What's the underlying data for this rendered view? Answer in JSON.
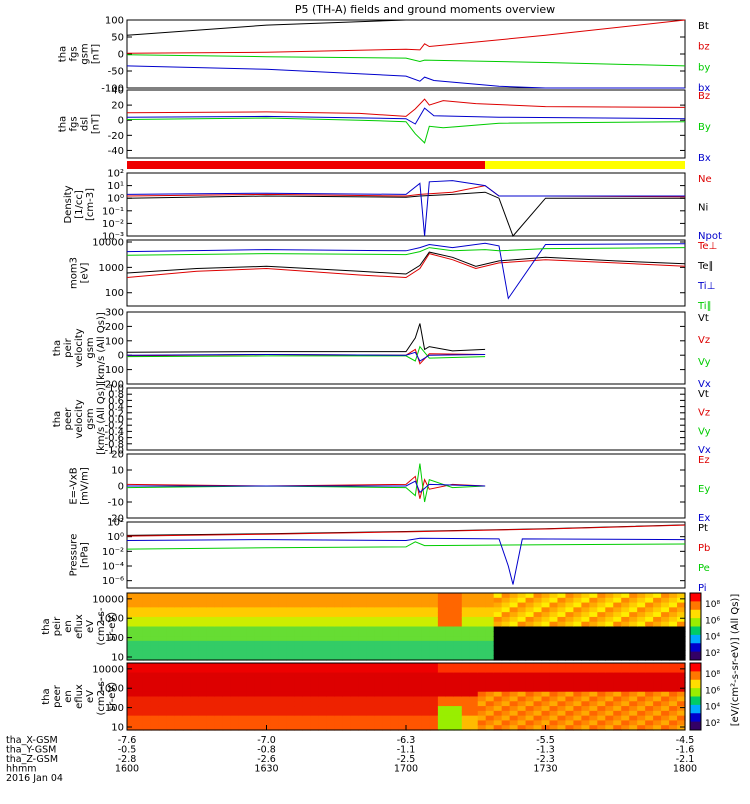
{
  "title": "P5 (TH-A) fields and ground moments overview",
  "chart_data": [
    {
      "id": "fgs_gsm",
      "type": "line",
      "ylabel": [
        "tha",
        "fgs",
        "gsm",
        "[nT]"
      ],
      "ylim": [
        -100,
        100
      ],
      "ticks": [
        "100",
        "50",
        "0",
        "-50",
        "-100"
      ],
      "tick_values": [
        100,
        50,
        0,
        -50,
        -100
      ],
      "series": [
        {
          "name": "Bt",
          "color": "#000000",
          "x": [
            1600,
            1630,
            1700,
            1703,
            1706,
            1720,
            1800
          ],
          "y": [
            55,
            85,
            100,
            100,
            100,
            100,
            100
          ]
        },
        {
          "name": "bz",
          "color": "#dd0000",
          "x": [
            1600,
            1630,
            1700,
            1703,
            1704,
            1705,
            1730,
            1800
          ],
          "y": [
            2,
            5,
            14,
            12,
            30,
            22,
            55,
            100
          ]
        },
        {
          "name": "by",
          "color": "#00cc00",
          "x": [
            1600,
            1630,
            1700,
            1703,
            1704,
            1730,
            1800
          ],
          "y": [
            -2,
            -8,
            -12,
            -22,
            -18,
            -25,
            -35
          ]
        },
        {
          "name": "bx",
          "color": "#0000cc",
          "x": [
            1600,
            1630,
            1700,
            1703,
            1704,
            1706,
            1720,
            1730,
            1800
          ],
          "y": [
            -35,
            -45,
            -65,
            -80,
            -68,
            -78,
            -95,
            -100,
            -100
          ]
        }
      ]
    },
    {
      "id": "fgs_dsl",
      "type": "line",
      "ylabel": [
        "tha",
        "fgs",
        "dsl",
        "[nT]"
      ],
      "ylim": [
        -50,
        40
      ],
      "ticks": [
        "40",
        "20",
        "0",
        "-20",
        "-40"
      ],
      "tick_values": [
        40,
        20,
        0,
        -20,
        -40
      ],
      "series": [
        {
          "name": "Bz",
          "color": "#dd0000",
          "x": [
            1600,
            1630,
            1650,
            1700,
            1702,
            1704,
            1705,
            1708,
            1715,
            1730,
            1800
          ],
          "y": [
            10,
            11,
            9,
            5,
            15,
            28,
            20,
            26,
            22,
            18,
            17
          ]
        },
        {
          "name": "By",
          "color": "#00cc00",
          "x": [
            1600,
            1630,
            1650,
            1700,
            1702,
            1704,
            1705,
            1708,
            1720,
            1800
          ],
          "y": [
            1,
            3,
            0,
            -2,
            -18,
            -30,
            -8,
            -10,
            -4,
            -2
          ]
        },
        {
          "name": "Bx",
          "color": "#0000cc",
          "x": [
            1600,
            1630,
            1700,
            1702,
            1704,
            1706,
            1720,
            1800
          ],
          "y": [
            4,
            5,
            2,
            -5,
            16,
            6,
            4,
            2
          ]
        }
      ]
    },
    {
      "id": "region_bar",
      "type": "bar",
      "segments": [
        {
          "from": 1600,
          "to": 1717,
          "color": "#ee0000"
        },
        {
          "from": 1717,
          "to": 1800,
          "color": "#ffff00"
        }
      ]
    },
    {
      "id": "density",
      "type": "line",
      "log": true,
      "ylabel": [
        "Density",
        "[1/cc]",
        "[cm-3]"
      ],
      "ylim": [
        0.001,
        100
      ],
      "ticks": [
        "10²",
        "10¹",
        "10⁰",
        "10⁻¹",
        "10⁻²",
        "10⁻³"
      ],
      "tick_values": [
        100,
        10,
        1,
        0.1,
        0.01,
        0.001
      ],
      "series": [
        {
          "name": "Ne",
          "color": "#dd0000",
          "x": [
            1600,
            1630,
            1700,
            1703,
            1710,
            1717,
            1720,
            1730,
            1800
          ],
          "y": [
            1.5,
            2,
            1.5,
            2,
            3,
            10,
            1.5,
            1.5,
            1.3
          ]
        },
        {
          "name": "Ni",
          "color": "#000000",
          "x": [
            1600,
            1630,
            1700,
            1703,
            1710,
            1717,
            1720,
            1722,
            1723,
            1730,
            1800
          ],
          "y": [
            1,
            1.5,
            1.2,
            1.5,
            2,
            3,
            1,
            0.01,
            0.001,
            1,
            1
          ]
        },
        {
          "name": "Npot",
          "color": "#0000cc",
          "x": [
            1600,
            1630,
            1700,
            1703,
            1704,
            1705,
            1710,
            1717,
            1720,
            1800
          ],
          "y": [
            2,
            2.5,
            2,
            15,
            0.001,
            20,
            25,
            10,
            1.5,
            1.5
          ]
        }
      ]
    },
    {
      "id": "temperature",
      "type": "line",
      "log": true,
      "ylabel": [
        "mom3",
        "[eV]"
      ],
      "ylim": [
        30,
        12000
      ],
      "ticks": [
        "10000",
        "1000",
        "100"
      ],
      "tick_values": [
        10000,
        1000,
        100
      ],
      "series": [
        {
          "name": "Te⊥",
          "color": "#dd0000",
          "x": [
            1600,
            1615,
            1630,
            1650,
            1700,
            1703,
            1705,
            1710,
            1715,
            1720,
            1730,
            1745,
            1800
          ],
          "y": [
            400,
            700,
            900,
            500,
            400,
            900,
            3500,
            2000,
            900,
            1500,
            2000,
            1500,
            1100
          ]
        },
        {
          "name": "Te∥",
          "color": "#000000",
          "x": [
            1600,
            1615,
            1630,
            1650,
            1700,
            1703,
            1705,
            1710,
            1715,
            1720,
            1730,
            1745,
            1800
          ],
          "y": [
            600,
            900,
            1100,
            700,
            550,
            1200,
            4000,
            2500,
            1100,
            1800,
            2500,
            1800,
            1400
          ]
        },
        {
          "name": "Ti⊥",
          "color": "#0000cc",
          "x": [
            1600,
            1630,
            1700,
            1703,
            1705,
            1710,
            1717,
            1720,
            1722,
            1730,
            1800
          ],
          "y": [
            4200,
            5000,
            4500,
            6000,
            8000,
            6000,
            9000,
            7000,
            60,
            8000,
            8500
          ]
        },
        {
          "name": "Ti∥",
          "color": "#00cc00",
          "x": [
            1600,
            1630,
            1700,
            1703,
            1705,
            1710,
            1717,
            1720,
            1730,
            1800
          ],
          "y": [
            3000,
            3500,
            3200,
            4200,
            6000,
            4500,
            5000,
            4500,
            5500,
            6000
          ]
        }
      ]
    },
    {
      "id": "peir_velocity",
      "type": "line",
      "ylabel": [
        "tha",
        "peir",
        "velocity",
        "gsm",
        "[km/s (All Qs)]"
      ],
      "ylim": [
        -200,
        300
      ],
      "ticks": [
        "300",
        "200",
        "100",
        "0",
        "-100",
        "-200"
      ],
      "tick_values": [
        300,
        200,
        100,
        0,
        -100,
        -200
      ],
      "series": [
        {
          "name": "Vt",
          "color": "#000000",
          "x": [
            1600,
            1630,
            1700,
            1702,
            1703,
            1704,
            1705,
            1710,
            1717
          ],
          "y": [
            20,
            25,
            25,
            120,
            220,
            40,
            60,
            30,
            40
          ]
        },
        {
          "name": "Vz",
          "color": "#dd0000",
          "x": [
            1600,
            1630,
            1700,
            1702,
            1703,
            1705,
            1717
          ],
          "y": [
            -5,
            5,
            0,
            40,
            -60,
            10,
            5
          ]
        },
        {
          "name": "Vy",
          "color": "#00cc00",
          "x": [
            1600,
            1630,
            1700,
            1702,
            1703,
            1705,
            1717
          ],
          "y": [
            -10,
            -5,
            -5,
            -40,
            60,
            -20,
            -10
          ]
        },
        {
          "name": "Vx",
          "color": "#0000cc",
          "x": [
            1600,
            1630,
            1700,
            1702,
            1703,
            1705,
            1717
          ],
          "y": [
            0,
            5,
            0,
            20,
            -40,
            0,
            5
          ]
        }
      ]
    },
    {
      "id": "peer_velocity",
      "type": "line",
      "ylabel": [
        "tha",
        "peer",
        "velocity",
        "gsm",
        "[km/s (All Qs)]"
      ],
      "ylim": [
        -1,
        1
      ],
      "ticks": [
        "1.0",
        "0.8",
        "0.6",
        "0.4",
        "0.2",
        "0.0",
        "-0.2",
        "-0.4",
        "-0.6",
        "-0.8",
        "-1.0"
      ],
      "tick_values": [
        1,
        0.8,
        0.6,
        0.4,
        0.2,
        0,
        -0.2,
        -0.4,
        -0.6,
        -0.8,
        -1
      ],
      "series": [
        {
          "name": "Vt",
          "color": "#000000",
          "x": [],
          "y": []
        },
        {
          "name": "Vz",
          "color": "#dd0000",
          "x": [],
          "y": []
        },
        {
          "name": "Vy",
          "color": "#00cc00",
          "x": [],
          "y": []
        },
        {
          "name": "Vx",
          "color": "#0000cc",
          "x": [],
          "y": []
        }
      ]
    },
    {
      "id": "efield",
      "type": "line",
      "ylabel": [
        "E=-VxB",
        "[mV/m]"
      ],
      "ylim": [
        -20,
        20
      ],
      "ticks": [
        "20",
        "10",
        "0",
        "-10",
        "-20"
      ],
      "tick_values": [
        20,
        10,
        0,
        -10,
        -20
      ],
      "series": [
        {
          "name": "Ez",
          "color": "#dd0000",
          "x": [
            1600,
            1630,
            1700,
            1702,
            1703,
            1704,
            1705,
            1710,
            1717
          ],
          "y": [
            1,
            0,
            1,
            6,
            -8,
            4,
            -2,
            1,
            0
          ]
        },
        {
          "name": "Ey",
          "color": "#00cc00",
          "x": [
            1600,
            1630,
            1700,
            1702,
            1703,
            1704,
            1705,
            1710,
            1717
          ],
          "y": [
            -1,
            0,
            -1,
            -6,
            14,
            -10,
            4,
            -1,
            0
          ]
        },
        {
          "name": "Ex",
          "color": "#0000cc",
          "x": [
            1600,
            1630,
            1700,
            1702,
            1703,
            1705,
            1717
          ],
          "y": [
            0,
            0,
            0,
            3,
            -4,
            1,
            0
          ]
        }
      ]
    },
    {
      "id": "pressure",
      "type": "line",
      "log": true,
      "ylabel": [
        "Pressure",
        "[nPa]"
      ],
      "ylim": [
        1e-07,
        100
      ],
      "ticks": [
        "10²",
        "10⁰",
        "10⁻²",
        "10⁻⁴",
        "10⁻⁶"
      ],
      "tick_values": [
        100,
        1,
        0.01,
        0.0001,
        1e-06
      ],
      "series": [
        {
          "name": "Pt",
          "color": "#000000",
          "x": [
            1600,
            1630,
            1700,
            1730,
            1800
          ],
          "y": [
            1.5,
            2.5,
            5,
            12,
            40
          ]
        },
        {
          "name": "Pb",
          "color": "#dd0000",
          "x": [
            1600,
            1630,
            1700,
            1730,
            1800
          ],
          "y": [
            1.2,
            2.2,
            4.5,
            11,
            38
          ]
        },
        {
          "name": "Pe",
          "color": "#00cc00",
          "x": [
            1600,
            1630,
            1700,
            1702,
            1704,
            1730,
            1800
          ],
          "y": [
            0.02,
            0.03,
            0.04,
            0.2,
            0.06,
            0.08,
            0.1
          ]
        },
        {
          "name": "Pi",
          "color": "#0000cc",
          "x": [
            1600,
            1630,
            1700,
            1703,
            1720,
            1722,
            1723,
            1725,
            1800
          ],
          "y": [
            0.3,
            0.4,
            0.3,
            0.6,
            0.5,
            0.0001,
            3e-07,
            0.5,
            0.4
          ]
        }
      ]
    },
    {
      "id": "peir_spectrogram",
      "type": "heatmap",
      "ylabel": [
        "tha",
        "peir",
        "en",
        "eflux",
        "eV",
        "(cm2-s-",
        "sr-eV)"
      ],
      "ticks": [
        "10000",
        "1000",
        "100",
        "10"
      ],
      "tick_values": [
        10000,
        1000,
        100,
        10
      ]
    },
    {
      "id": "peer_spectrogram",
      "type": "heatmap",
      "ylabel": [
        "tha",
        "peer",
        "en",
        "eflux",
        "eV",
        "(cm2-s-",
        "sr-eV)"
      ],
      "ticks": [
        "10000",
        "1000",
        "100",
        "10"
      ],
      "tick_values": [
        10000,
        1000,
        100,
        10
      ]
    }
  ],
  "colorbar": {
    "label": "[eV/(cm²-s-sr-eV)] (All Qs)]",
    "ticks": [
      "10⁸",
      "10⁶",
      "10⁴",
      "10²",
      "10⁸",
      "10⁶",
      "10⁴",
      "10²"
    ]
  },
  "x_axis": {
    "ticks": [
      1600,
      1630,
      1700,
      1730,
      1800
    ],
    "rows": [
      {
        "label": "tha_X-GSM",
        "values": [
          "-7.6",
          "-7.0",
          "-6.3",
          "-5.5",
          "-4.5"
        ]
      },
      {
        "label": "tha_Y-GSM",
        "values": [
          "-0.5",
          "-0.8",
          "-1.1",
          "-1.3",
          "-1.6"
        ]
      },
      {
        "label": "tha_Z-GSM",
        "values": [
          "-2.8",
          "-2.6",
          "-2.5",
          "-2.3",
          "-2.1"
        ]
      },
      {
        "label": "hhmm",
        "values": [
          "1600",
          "1630",
          "1700",
          "1730",
          "1800"
        ]
      }
    ],
    "date": "2016 Jan 04"
  }
}
